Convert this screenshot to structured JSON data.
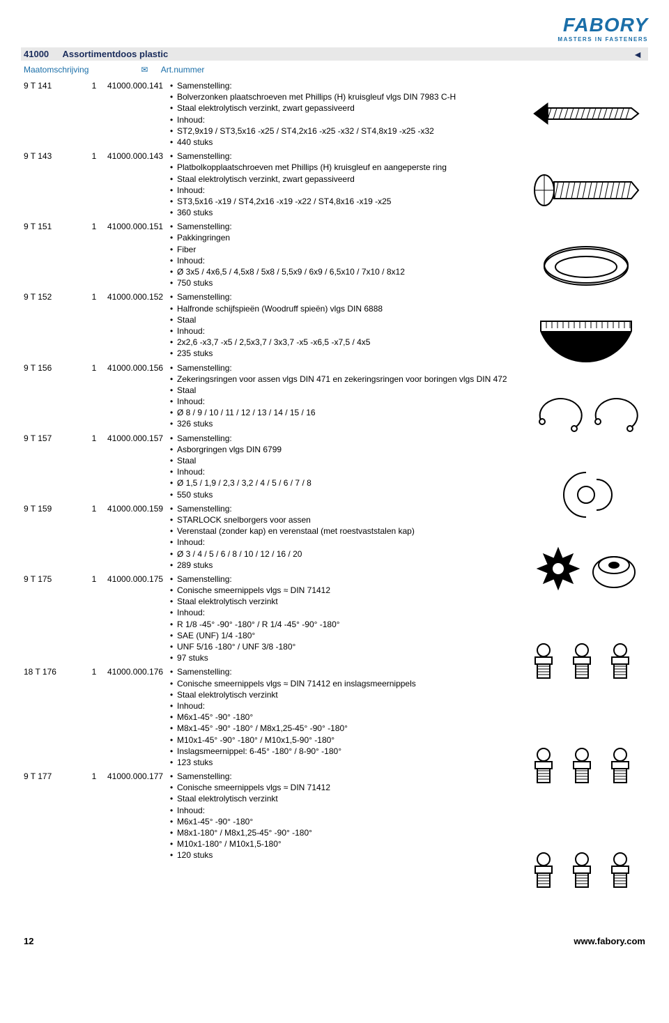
{
  "logo": {
    "brand": "FABORY",
    "tagline": "MASTERS IN FASTENERS"
  },
  "section": {
    "code": "41000",
    "title": "Assortimentdoos plastic"
  },
  "headers": {
    "col1": "Maatomschrijving",
    "col2_icon": "✉",
    "col3": "Art.nummer"
  },
  "back_arrow": "◄",
  "footer": {
    "page": "12",
    "url": "www.fabory.com"
  },
  "rows": [
    {
      "maat": "9 T 141",
      "qty": "1",
      "art": "41000.000.141",
      "bullets": [
        "Samenstelling:",
        "Bolverzonken plaatschroeven met Phillips (H) kruisgleuf vlgs DIN 7983 C-H",
        "Staal elektrolytisch verzinkt, zwart gepassiveerd",
        "Inhoud:",
        "ST2,9x19 / ST3,5x16 -x25 / ST4,2x16 -x25 -x32 / ST4,8x19 -x25 -x32",
        "440 stuks"
      ]
    },
    {
      "maat": "9 T 143",
      "qty": "1",
      "art": "41000.000.143",
      "bullets": [
        "Samenstelling:",
        "Platbolkopplaatschroeven met Phillips (H) kruisgleuf en aangeperste ring",
        "Staal elektrolytisch verzinkt, zwart gepassiveerd",
        "Inhoud:",
        "ST3,5x16 -x19 / ST4,2x16 -x19 -x22 / ST4,8x16 -x19 -x25",
        "360 stuks"
      ]
    },
    {
      "maat": "9 T 151",
      "qty": "1",
      "art": "41000.000.151",
      "bullets": [
        "Samenstelling:",
        "Pakkingringen",
        "Fiber",
        "Inhoud:",
        "Ø 3x5 / 4x6,5 / 4,5x8 / 5x8 / 5,5x9 / 6x9 / 6,5x10 / 7x10 / 8x12",
        "750 stuks"
      ]
    },
    {
      "maat": "9 T 152",
      "qty": "1",
      "art": "41000.000.152",
      "bullets": [
        "Samenstelling:",
        "Halfronde schijfspieën (Woodruff spieën) vlgs DIN 6888",
        "Staal",
        "Inhoud:",
        "2x2,6 -x3,7 -x5 / 2,5x3,7 / 3x3,7 -x5 -x6,5 -x7,5 / 4x5",
        "235 stuks"
      ]
    },
    {
      "maat": "9 T 156",
      "qty": "1",
      "art": "41000.000.156",
      "bullets": [
        "Samenstelling:",
        "Zekeringsringen voor assen vlgs DIN 471 en zekeringsringen voor boringen vlgs DIN 472",
        "Staal",
        "Inhoud:",
        "Ø 8 / 9 / 10 / 11 / 12 / 13 / 14 / 15 / 16",
        "326 stuks"
      ]
    },
    {
      "maat": "9 T 157",
      "qty": "1",
      "art": "41000.000.157",
      "bullets": [
        "Samenstelling:",
        "Asborgringen vlgs DIN 6799",
        "Staal",
        "Inhoud:",
        "Ø 1,5 / 1,9 / 2,3 / 3,2 / 4 / 5 / 6 / 7 / 8",
        "550 stuks"
      ]
    },
    {
      "maat": "9 T 159",
      "qty": "1",
      "art": "41000.000.159",
      "bullets": [
        "Samenstelling:",
        "STARLOCK snelborgers voor assen",
        "Verenstaal (zonder kap) en verenstaal (met roestvaststalen kap)",
        "Inhoud:",
        "Ø 3 / 4 / 5 / 6 / 8 / 10 / 12 / 16 / 20",
        "289 stuks"
      ]
    },
    {
      "maat": "9 T 175",
      "qty": "1",
      "art": "41000.000.175",
      "bullets": [
        "Samenstelling:",
        "Conische smeernippels vlgs ≈ DIN 71412",
        "Staal elektrolytisch verzinkt",
        "Inhoud:",
        "R 1/8 -45° -90° -180° / R 1/4 -45° -90° -180°",
        "SAE (UNF) 1/4 -180°",
        "UNF 5/16 -180° / UNF 3/8 -180°",
        "97 stuks"
      ]
    },
    {
      "maat": "18 T 176",
      "qty": "1",
      "art": "41000.000.176",
      "bullets": [
        "Samenstelling:",
        "Conische smeernippels vlgs ≈ DIN 71412 en inslagsmeernippels",
        "Staal elektrolytisch verzinkt",
        "Inhoud:",
        "M6x1-45° -90° -180°",
        "M8x1-45° -90° -180° / M8x1,25-45° -90° -180°",
        "M10x1-45° -90° -180° / M10x1,5-90° -180°",
        "Inslagsmeernippel: 6-45° -180° / 8-90° -180°",
        "123 stuks"
      ]
    },
    {
      "maat": "9 T 177",
      "qty": "1",
      "art": "41000.000.177",
      "bullets": [
        "Samenstelling:",
        "Conische smeernippels vlgs ≈ DIN 71412",
        "Staal elektrolytisch verzinkt",
        "Inhoud:",
        "M6x1-45° -90° -180°",
        "M8x1-180° / M8x1,25-45° -90° -180°",
        "M10x1-180° / M10x1,5-180°",
        "120 stuks"
      ]
    }
  ],
  "icons": [
    "screw-countersunk",
    "screw-panhead",
    "ring-gasket",
    "woodruff-key",
    "circlip-pair",
    "e-clip",
    "starlock-pair",
    "grease-nipple-set",
    "grease-nipple-set",
    "grease-nipple-set"
  ]
}
